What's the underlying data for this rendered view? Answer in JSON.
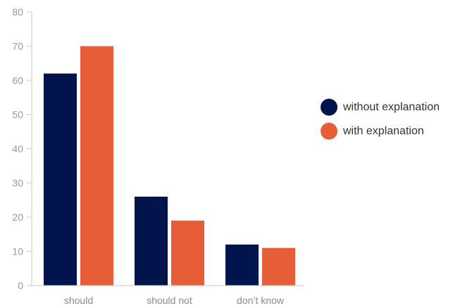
{
  "chart_data": {
    "type": "bar",
    "categories": [
      "should",
      "should not",
      "don’t know"
    ],
    "series": [
      {
        "name": "without explanation",
        "values": [
          62,
          26,
          12
        ],
        "color": "#00134b"
      },
      {
        "name": "with explanation",
        "values": [
          70,
          19,
          11
        ],
        "color": "#e65e37"
      }
    ],
    "ylim": [
      0,
      80
    ],
    "yticks": [
      0,
      10,
      20,
      30,
      40,
      50,
      60,
      70,
      80
    ],
    "title": "",
    "xlabel": "",
    "ylabel": "",
    "grid": false,
    "legend_position": "right"
  }
}
